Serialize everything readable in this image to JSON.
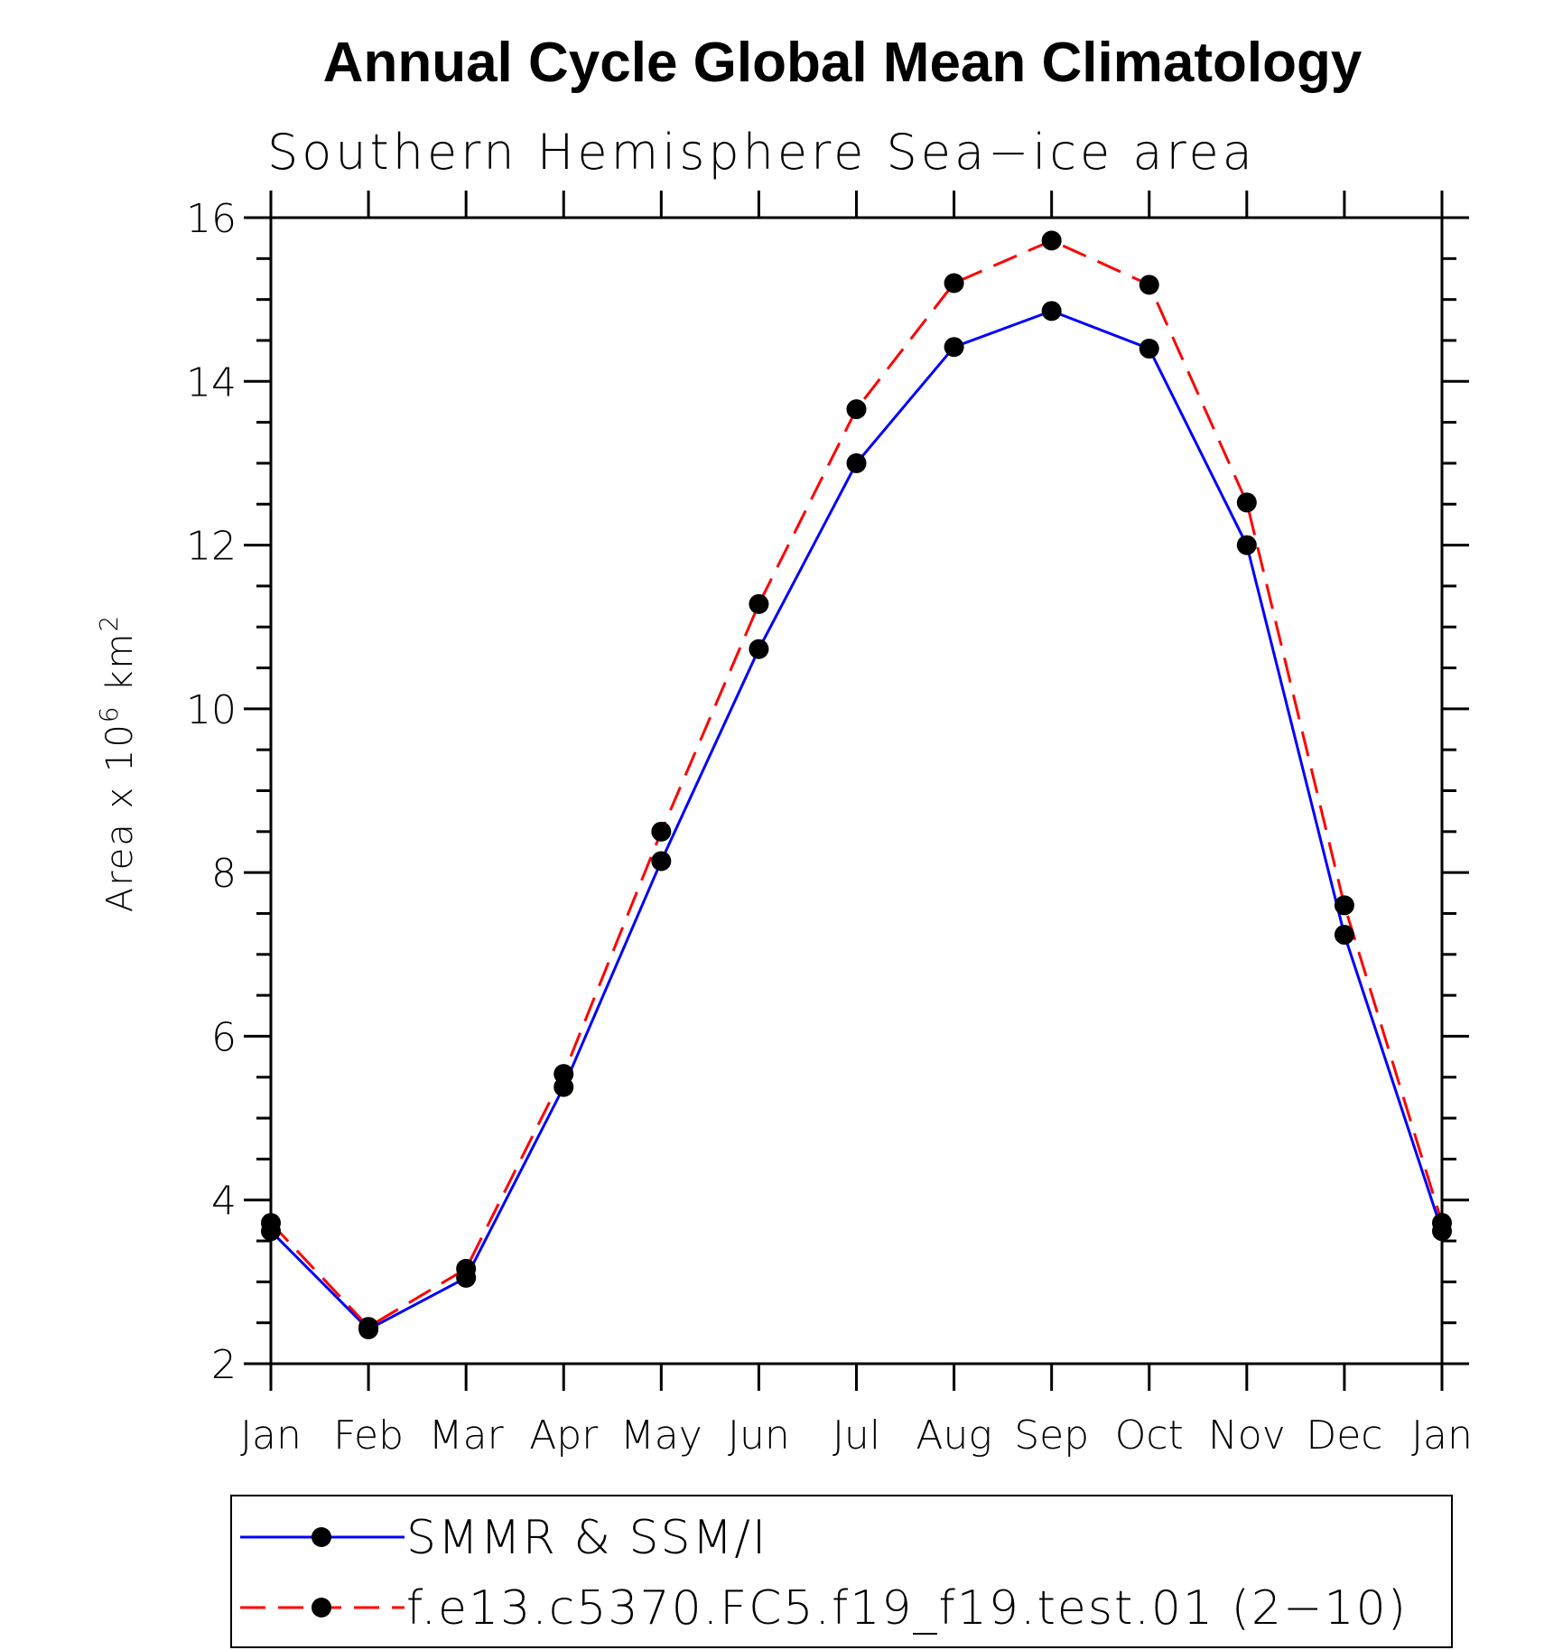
{
  "chart_data": {
    "type": "line",
    "title": "Annual Cycle Global Mean Climatology",
    "subtitle": "Southern Hemisphere Sea−ice area",
    "ylabel_prefix": "Area x 10",
    "ylabel_exp1": "6",
    "ylabel_mid": " km",
    "ylabel_exp2": "2",
    "xlabel": "",
    "categories": [
      "Jan",
      "Feb",
      "Mar",
      "Apr",
      "May",
      "Jun",
      "Jul",
      "Aug",
      "Sep",
      "Oct",
      "Nov",
      "Dec",
      "Jan"
    ],
    "ylim": [
      2,
      16
    ],
    "yticks": [
      2,
      4,
      6,
      8,
      10,
      12,
      14,
      16
    ],
    "series": [
      {
        "name": "SMMR & SSM/I",
        "color": "#0000ff",
        "dash": "solid",
        "values": [
          3.62,
          2.42,
          3.05,
          5.38,
          8.14,
          10.73,
          13.0,
          14.42,
          14.86,
          14.4,
          12.0,
          7.24,
          3.62
        ]
      },
      {
        "name": "f.e13.c5370.FC5.f19_f19.test.01 (2−10)",
        "color": "#ff0000",
        "dash": "dashed",
        "values": [
          3.72,
          2.45,
          3.16,
          5.54,
          8.5,
          11.28,
          13.66,
          15.2,
          15.72,
          15.18,
          12.52,
          7.6,
          3.72
        ]
      }
    ]
  }
}
